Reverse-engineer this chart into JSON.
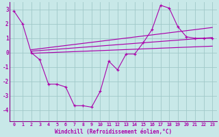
{
  "x_main": [
    0,
    1,
    2,
    3,
    4,
    5,
    6,
    7,
    8,
    9,
    10,
    11,
    12,
    13,
    14,
    15,
    16,
    17,
    18,
    19,
    20,
    21,
    22,
    23
  ],
  "y_main": [
    2.9,
    2.0,
    0.0,
    -0.5,
    -2.2,
    -2.2,
    -2.4,
    -3.7,
    -3.7,
    -3.8,
    -2.7,
    -0.6,
    -1.2,
    -0.1,
    -0.1,
    0.7,
    1.6,
    3.3,
    3.1,
    1.8,
    1.1,
    1.0,
    1.0,
    1.0
  ],
  "trend1_x": [
    2,
    23
  ],
  "trend1_y": [
    -0.05,
    0.45
  ],
  "trend2_x": [
    2,
    23
  ],
  "trend2_y": [
    0.1,
    1.05
  ],
  "trend3_x": [
    2,
    23
  ],
  "trend3_y": [
    0.2,
    1.75
  ],
  "ylim": [
    -4.8,
    3.5
  ],
  "xlim": [
    -0.5,
    23.5
  ],
  "yticks": [
    3,
    2,
    1,
    0,
    -1,
    -2,
    -3,
    -4
  ],
  "xtick_labels": [
    "0",
    "1",
    "2",
    "3",
    "4",
    "5",
    "6",
    "7",
    "8",
    "9",
    "10",
    "11",
    "12",
    "13",
    "14",
    "15",
    "16",
    "17",
    "18",
    "19",
    "20",
    "21",
    "22",
    "23"
  ],
  "xlabel": "Windchill (Refroidissement éolien,°C)",
  "line_color": "#aa00aa",
  "bg_color": "#c8e8e8",
  "grid_color": "#a0c8c8",
  "spine_color": "#880088"
}
